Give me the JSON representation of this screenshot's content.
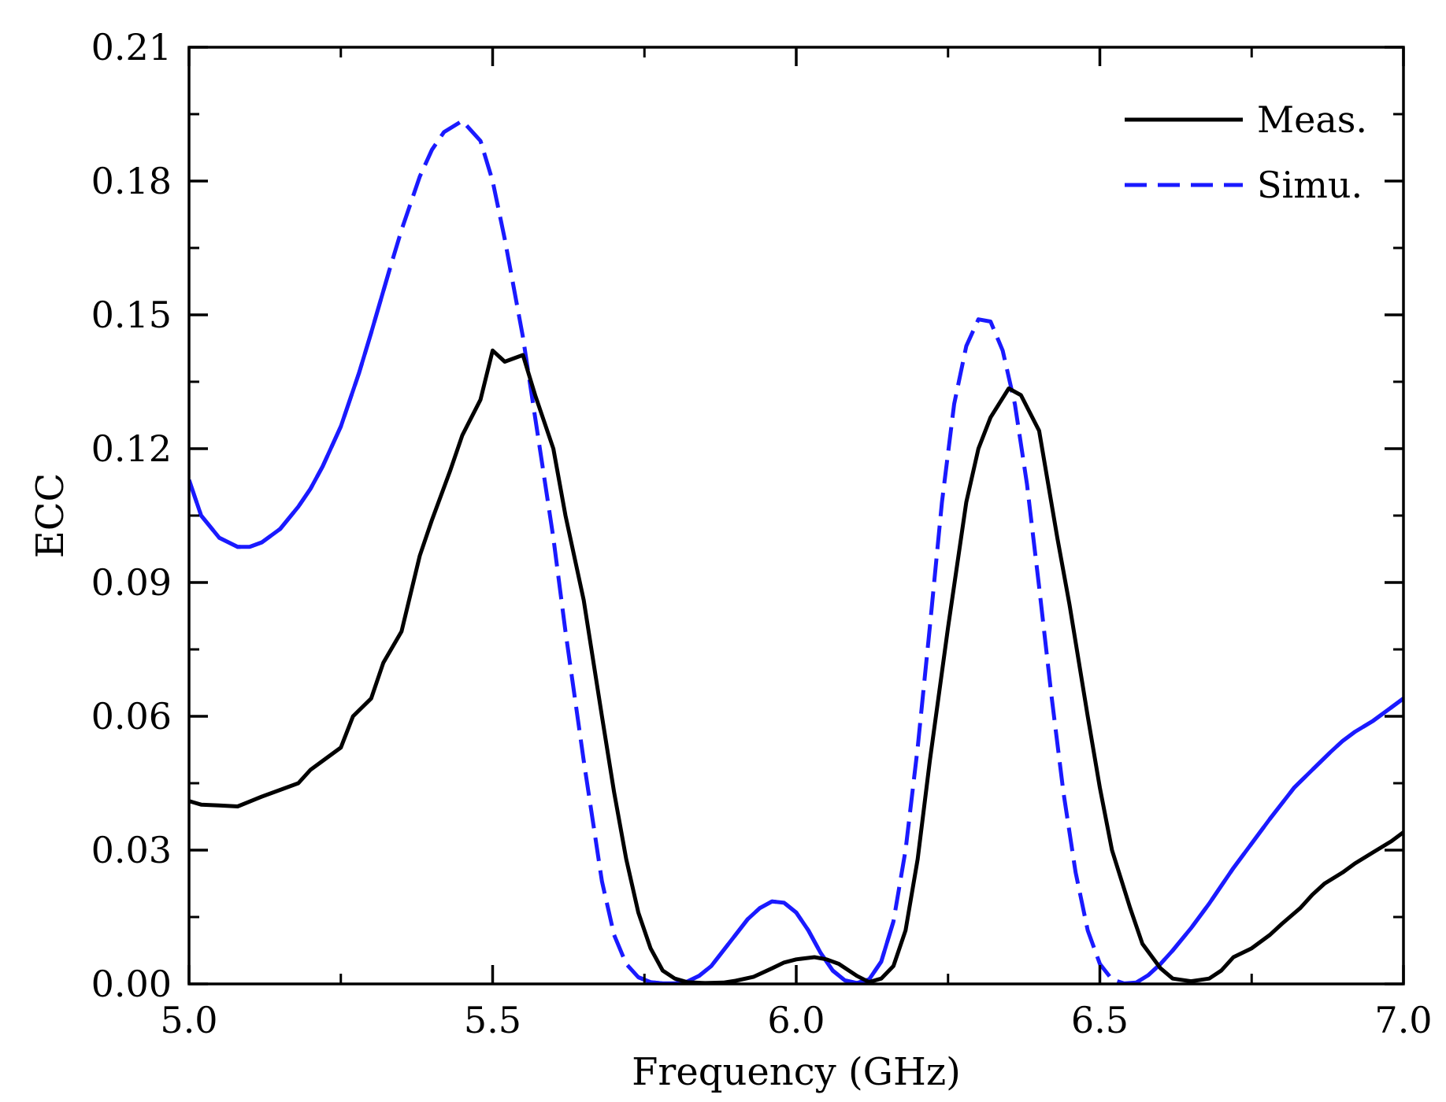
{
  "chart_data": {
    "type": "line",
    "title": "",
    "xlabel": "Frequency (GHz)",
    "ylabel": "ECC",
    "xlim": [
      5.0,
      7.0
    ],
    "ylim": [
      0.0,
      0.21
    ],
    "xticks": [
      "5.0",
      "5.5",
      "6.0",
      "6.5",
      "7.0"
    ],
    "yticks": [
      "0.00",
      "0.03",
      "0.06",
      "0.09",
      "0.12",
      "0.15",
      "0.18",
      "0.21"
    ],
    "grid": false,
    "legend_position": "top-right",
    "series": [
      {
        "name": "Meas.",
        "color": "#000000",
        "style": "solid",
        "x": [
          5.0,
          5.02,
          5.05,
          5.08,
          5.12,
          5.15,
          5.18,
          5.2,
          5.22,
          5.25,
          5.27,
          5.3,
          5.32,
          5.35,
          5.38,
          5.4,
          5.43,
          5.45,
          5.48,
          5.5,
          5.52,
          5.55,
          5.57,
          5.6,
          5.62,
          5.65,
          5.68,
          5.7,
          5.72,
          5.74,
          5.76,
          5.78,
          5.8,
          5.82,
          5.85,
          5.88,
          5.9,
          5.93,
          5.96,
          5.98,
          6.0,
          6.03,
          6.05,
          6.07,
          6.1,
          6.12,
          6.14,
          6.16,
          6.18,
          6.2,
          6.22,
          6.25,
          6.28,
          6.3,
          6.32,
          6.35,
          6.37,
          6.4,
          6.43,
          6.45,
          6.48,
          6.5,
          6.52,
          6.55,
          6.57,
          6.6,
          6.62,
          6.65,
          6.68,
          6.7,
          6.72,
          6.75,
          6.78,
          6.8,
          6.83,
          6.85,
          6.87,
          6.9,
          6.92,
          6.95,
          6.98,
          7.0
        ],
        "y": [
          0.041,
          0.0402,
          0.04,
          0.0398,
          0.042,
          0.0435,
          0.045,
          0.048,
          0.05,
          0.053,
          0.06,
          0.064,
          0.072,
          0.079,
          0.096,
          0.104,
          0.115,
          0.123,
          0.131,
          0.142,
          0.1395,
          0.141,
          0.132,
          0.12,
          0.105,
          0.086,
          0.06,
          0.043,
          0.028,
          0.016,
          0.008,
          0.003,
          0.0012,
          0.0004,
          0.0002,
          0.0003,
          0.0007,
          0.0016,
          0.0035,
          0.0048,
          0.0055,
          0.006,
          0.0055,
          0.0045,
          0.0018,
          0.0004,
          0.0012,
          0.004,
          0.012,
          0.028,
          0.05,
          0.08,
          0.108,
          0.12,
          0.127,
          0.1335,
          0.132,
          0.124,
          0.1,
          0.085,
          0.06,
          0.044,
          0.03,
          0.017,
          0.009,
          0.0035,
          0.0012,
          0.0006,
          0.0012,
          0.003,
          0.006,
          0.008,
          0.011,
          0.0135,
          0.017,
          0.02,
          0.0225,
          0.025,
          0.027,
          0.0295,
          0.032,
          0.034
        ]
      },
      {
        "name": "Simu.",
        "color": "#1a1aff",
        "style": "mixed-dashed",
        "x": [
          5.0,
          5.02,
          5.05,
          5.08,
          5.1,
          5.12,
          5.15,
          5.18,
          5.2,
          5.22,
          5.25,
          5.28,
          5.3,
          5.33,
          5.35,
          5.38,
          5.4,
          5.42,
          5.45,
          5.48,
          5.5,
          5.52,
          5.55,
          5.58,
          5.6,
          5.62,
          5.65,
          5.68,
          5.7,
          5.72,
          5.74,
          5.76,
          5.78,
          5.8,
          5.82,
          5.84,
          5.86,
          5.88,
          5.9,
          5.92,
          5.94,
          5.96,
          5.98,
          6.0,
          6.02,
          6.04,
          6.06,
          6.08,
          6.1,
          6.12,
          6.14,
          6.16,
          6.18,
          6.2,
          6.22,
          6.24,
          6.26,
          6.28,
          6.3,
          6.32,
          6.34,
          6.36,
          6.38,
          6.4,
          6.42,
          6.44,
          6.46,
          6.48,
          6.5,
          6.52,
          6.54,
          6.56,
          6.58,
          6.6,
          6.62,
          6.65,
          6.68,
          6.7,
          6.72,
          6.75,
          6.78,
          6.8,
          6.82,
          6.85,
          6.88,
          6.9,
          6.92,
          6.95,
          6.98,
          7.0
        ],
        "y": [
          0.113,
          0.105,
          0.1,
          0.098,
          0.098,
          0.099,
          0.102,
          0.107,
          0.111,
          0.116,
          0.125,
          0.137,
          0.146,
          0.16,
          0.169,
          0.181,
          0.187,
          0.191,
          0.1935,
          0.189,
          0.18,
          0.167,
          0.145,
          0.118,
          0.1,
          0.079,
          0.05,
          0.023,
          0.011,
          0.0045,
          0.0015,
          0.0004,
          0.0001,
          0.0001,
          0.0005,
          0.0018,
          0.004,
          0.0075,
          0.011,
          0.0145,
          0.017,
          0.0185,
          0.0182,
          0.016,
          0.012,
          0.007,
          0.003,
          0.0008,
          0.0002,
          0.001,
          0.005,
          0.014,
          0.03,
          0.053,
          0.08,
          0.108,
          0.13,
          0.143,
          0.149,
          0.1485,
          0.142,
          0.13,
          0.112,
          0.089,
          0.065,
          0.043,
          0.025,
          0.012,
          0.0045,
          0.001,
          0.0001,
          0.0003,
          0.002,
          0.0045,
          0.0075,
          0.0125,
          0.018,
          0.022,
          0.026,
          0.0315,
          0.037,
          0.0405,
          0.044,
          0.048,
          0.052,
          0.0545,
          0.0565,
          0.059,
          0.062,
          0.064
        ]
      }
    ]
  }
}
